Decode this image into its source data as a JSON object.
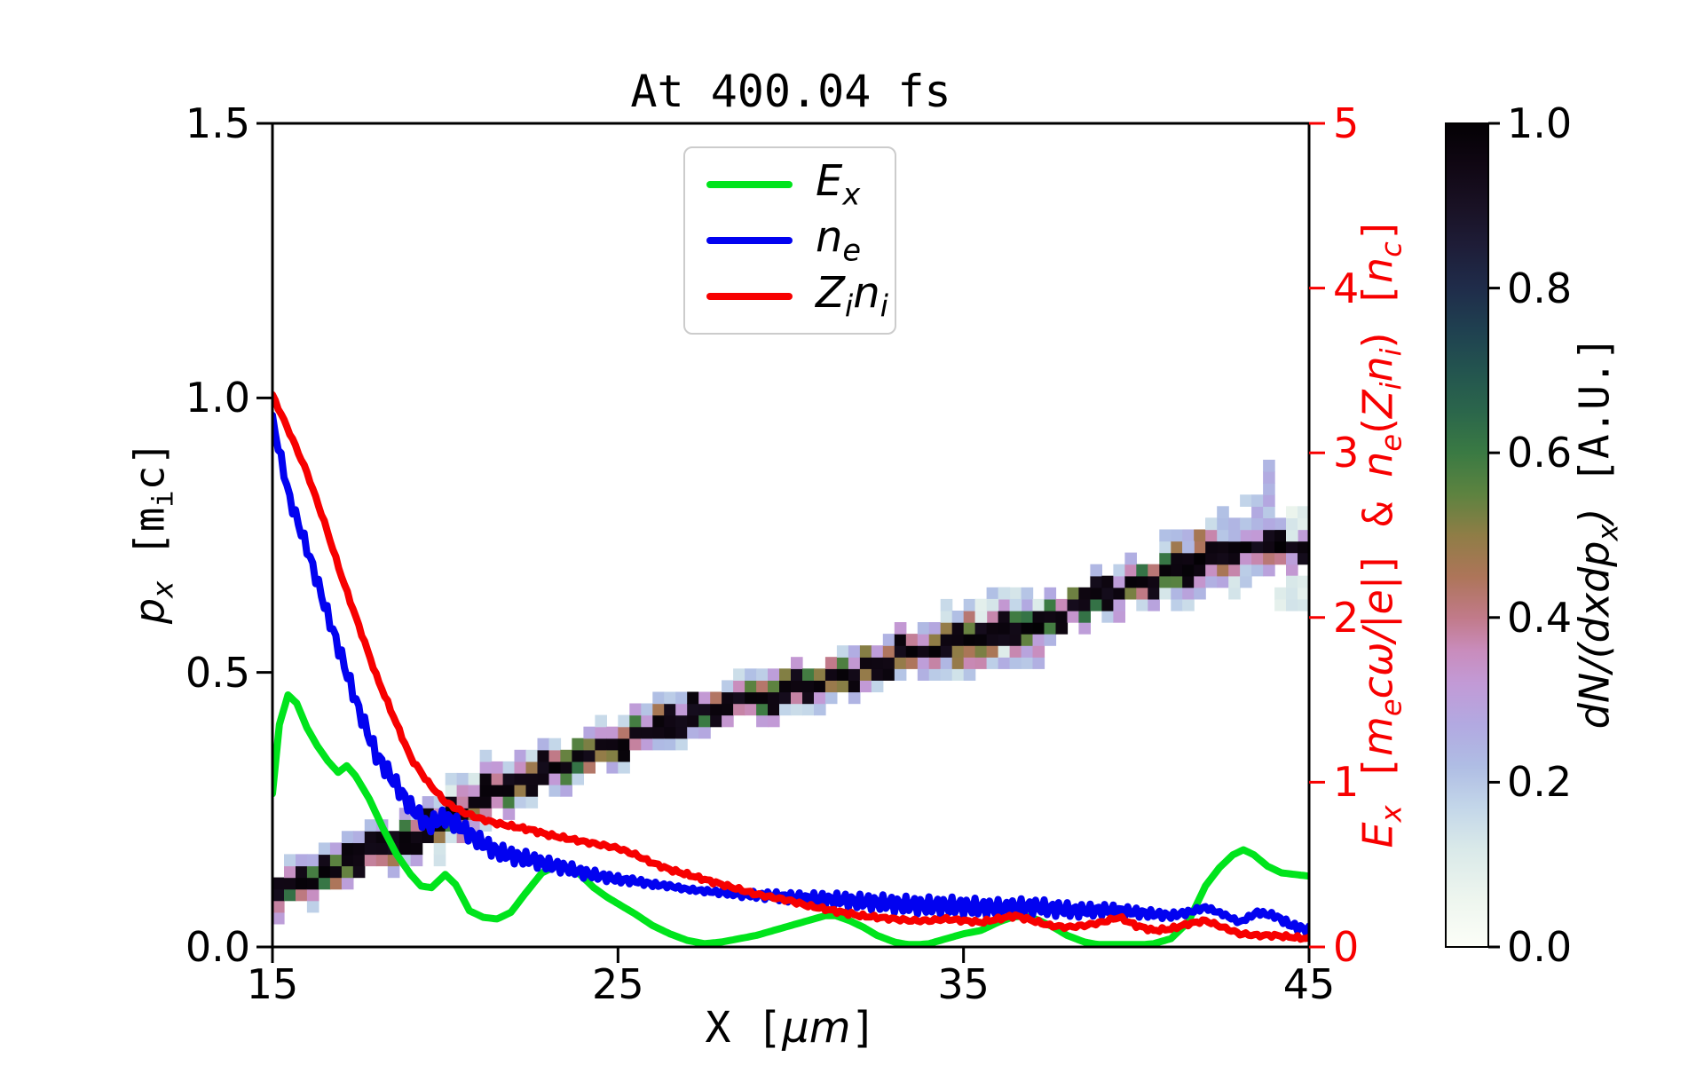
{
  "title": "At 400.04 fs",
  "axes": {
    "x": {
      "label_parts": [
        {
          "t": "X [",
          "mono": true
        },
        {
          "t": "μm",
          "it": true
        },
        {
          "t": "]",
          "mono": true
        }
      ],
      "ticks": [
        15,
        25,
        35,
        45
      ],
      "range": [
        15,
        45
      ]
    },
    "y_left": {
      "label_parts": [
        {
          "t": "p",
          "it": true
        },
        {
          "t": "x",
          "it": true,
          "sub": true
        },
        {
          "t": " [m",
          "mono": true
        },
        {
          "t": "i",
          "mono": true,
          "sub": true
        },
        {
          "t": "c]",
          "mono": true
        }
      ],
      "ticks": [
        "0.0",
        "0.5",
        "1.0",
        "1.5"
      ],
      "range": [
        0,
        1.5
      ],
      "color": "#000000"
    },
    "y_right": {
      "label_parts": [
        {
          "t": "E",
          "it": true
        },
        {
          "t": "x",
          "it": true,
          "sub": true
        },
        {
          "t": " [",
          "mono": true
        },
        {
          "t": "m",
          "it": true
        },
        {
          "t": "e",
          "it": true,
          "sub": true
        },
        {
          "t": "cω/|e|",
          "it": true
        },
        {
          "t": "] & ",
          "mono": true
        },
        {
          "t": "n",
          "it": true
        },
        {
          "t": "e",
          "it": true,
          "sub": true
        },
        {
          "t": "(",
          "mono": false
        },
        {
          "t": "Z",
          "it": true
        },
        {
          "t": "i",
          "it": true,
          "sub": true
        },
        {
          "t": "n",
          "it": true
        },
        {
          "t": "i",
          "it": true,
          "sub": true
        },
        {
          "t": ")",
          "mono": false
        },
        {
          "t": " [",
          "mono": true
        },
        {
          "t": "n",
          "it": true
        },
        {
          "t": "c",
          "it": true,
          "sub": true
        },
        {
          "t": "]",
          "mono": true
        }
      ],
      "ticks": [
        0,
        1,
        2,
        3,
        4,
        5
      ],
      "range": [
        0,
        5
      ],
      "color": "#f70000"
    }
  },
  "legend": {
    "items": [
      {
        "name": "Ex",
        "color": "#00e41c",
        "label_parts": [
          {
            "t": "E",
            "it": true
          },
          {
            "t": "x",
            "it": true,
            "sub": true
          }
        ]
      },
      {
        "name": "ne",
        "color": "#0202f0",
        "label_parts": [
          {
            "t": "n",
            "it": true
          },
          {
            "t": "e",
            "it": true,
            "sub": true
          }
        ]
      },
      {
        "name": "Zini",
        "color": "#f70000",
        "label_parts": [
          {
            "t": "Z",
            "it": true
          },
          {
            "t": "i",
            "it": true,
            "sub": true
          },
          {
            "t": "n",
            "it": true
          },
          {
            "t": "i",
            "it": true,
            "sub": true
          }
        ]
      }
    ]
  },
  "colorbar": {
    "label_parts": [
      {
        "t": "dN/(dxdp",
        "it": true
      },
      {
        "t": "x",
        "it": true,
        "sub": true
      },
      {
        "t": ")",
        "it": true
      },
      {
        "t": " [A.U.]",
        "mono": true
      }
    ],
    "ticks": [
      "0.0",
      "0.2",
      "0.4",
      "0.6",
      "0.8",
      "1.0"
    ],
    "range": [
      0,
      1
    ],
    "stops": [
      [
        0.0,
        "#fcfef8"
      ],
      [
        0.06,
        "#edf5ee"
      ],
      [
        0.12,
        "#d9e9e9"
      ],
      [
        0.17,
        "#c3d6e9"
      ],
      [
        0.22,
        "#afbde4"
      ],
      [
        0.27,
        "#b2a9e1"
      ],
      [
        0.32,
        "#c29ad6"
      ],
      [
        0.36,
        "#c98cbc"
      ],
      [
        0.4,
        "#c17a89"
      ],
      [
        0.45,
        "#ad7559"
      ],
      [
        0.5,
        "#8f7d46"
      ],
      [
        0.55,
        "#5d8340"
      ],
      [
        0.6,
        "#3a7a43"
      ],
      [
        0.65,
        "#2b664b"
      ],
      [
        0.7,
        "#23544f"
      ],
      [
        0.75,
        "#1f4050"
      ],
      [
        0.8,
        "#1f2c4a"
      ],
      [
        0.85,
        "#1e1d38"
      ],
      [
        0.9,
        "#191124"
      ],
      [
        0.95,
        "#100713"
      ],
      [
        1.0,
        "#030104"
      ]
    ]
  },
  "chart_data": {
    "type": [
      "heatmap",
      "line"
    ],
    "x_range": [
      15,
      45
    ],
    "y_left_range": [
      0,
      1.5
    ],
    "y_right_range": [
      0,
      5
    ],
    "series": [
      {
        "name": "Ex",
        "axis": "right",
        "color": "#00e41c",
        "noise_amp": 0,
        "x": [
          15,
          15.2,
          15.45,
          15.7,
          16,
          16.3,
          16.6,
          16.9,
          17.15,
          17.4,
          17.8,
          18.2,
          18.6,
          19,
          19.3,
          19.6,
          20,
          20.3,
          20.7,
          21.1,
          21.5,
          21.9,
          22.3,
          22.8,
          23.2,
          23.6,
          23.9,
          24.3,
          24.7,
          25.1,
          25.5,
          26,
          26.5,
          27,
          27.5,
          28,
          28.5,
          29,
          29.5,
          30,
          30.5,
          31,
          31.3,
          31.7,
          32.1,
          32.5,
          33,
          33.5,
          34,
          34.5,
          35,
          35.5,
          36,
          36.4,
          36.8,
          37.2,
          37.6,
          38,
          38.5,
          39,
          39.5,
          40,
          40.5,
          41,
          41.5,
          42,
          42.4,
          42.8,
          43.1,
          43.4,
          43.8,
          44.2,
          44.6,
          45
        ],
        "y": [
          0.93,
          1.35,
          1.53,
          1.48,
          1.33,
          1.22,
          1.13,
          1.06,
          1.1,
          1.04,
          0.9,
          0.72,
          0.56,
          0.44,
          0.37,
          0.36,
          0.44,
          0.38,
          0.22,
          0.18,
          0.17,
          0.21,
          0.32,
          0.45,
          0.49,
          0.47,
          0.44,
          0.36,
          0.3,
          0.25,
          0.2,
          0.13,
          0.08,
          0.04,
          0.02,
          0.03,
          0.05,
          0.07,
          0.1,
          0.13,
          0.16,
          0.19,
          0.19,
          0.16,
          0.12,
          0.07,
          0.03,
          0.01,
          0.02,
          0.05,
          0.08,
          0.1,
          0.15,
          0.18,
          0.19,
          0.16,
          0.12,
          0.07,
          0.03,
          0.01,
          0.01,
          0.01,
          0.02,
          0.05,
          0.15,
          0.37,
          0.48,
          0.56,
          0.59,
          0.56,
          0.49,
          0.45,
          0.44,
          0.43
        ]
      },
      {
        "name": "ne",
        "axis": "right",
        "color": "#0202f0",
        "noise_amp": 0.055,
        "x": [
          15,
          15.5,
          16,
          16.5,
          17,
          17.5,
          18,
          18.5,
          19,
          19.5,
          20,
          20.5,
          21,
          21.5,
          22,
          22.5,
          23,
          23.5,
          24,
          24.5,
          25,
          25.5,
          26,
          26.5,
          27,
          27.5,
          28,
          28.5,
          29,
          29.5,
          30,
          30.5,
          31,
          31.5,
          32,
          32.5,
          33,
          33.5,
          34,
          34.5,
          35,
          35.5,
          36,
          36.5,
          37,
          37.5,
          38,
          38.5,
          39,
          39.5,
          40,
          40.5,
          41,
          41.5,
          42,
          42.5,
          43,
          43.5,
          44,
          44.5,
          45
        ],
        "y": [
          3.2,
          2.72,
          2.42,
          2.08,
          1.76,
          1.44,
          1.17,
          1.01,
          0.85,
          0.74,
          0.79,
          0.72,
          0.64,
          0.58,
          0.55,
          0.53,
          0.5,
          0.48,
          0.45,
          0.43,
          0.41,
          0.4,
          0.38,
          0.37,
          0.35,
          0.34,
          0.33,
          0.32,
          0.315,
          0.31,
          0.3,
          0.295,
          0.29,
          0.285,
          0.275,
          0.27,
          0.26,
          0.255,
          0.25,
          0.25,
          0.245,
          0.24,
          0.235,
          0.24,
          0.245,
          0.235,
          0.225,
          0.22,
          0.225,
          0.22,
          0.21,
          0.2,
          0.19,
          0.21,
          0.24,
          0.2,
          0.15,
          0.21,
          0.19,
          0.13,
          0.1
        ]
      },
      {
        "name": "Zini",
        "axis": "right",
        "color": "#f70000",
        "noise_amp": 0.013,
        "x": [
          15,
          15.5,
          16,
          16.5,
          17,
          17.5,
          18,
          18.5,
          19,
          19.5,
          20,
          20.5,
          21,
          21.5,
          22,
          22.5,
          23,
          23.5,
          24,
          24.5,
          25,
          25.5,
          26,
          26.5,
          27,
          27.5,
          28,
          28.5,
          29,
          29.5,
          30,
          30.5,
          31,
          31.5,
          32,
          32.5,
          33,
          33.5,
          34,
          34.5,
          35,
          35.5,
          36,
          36.5,
          37,
          37.5,
          38,
          38.5,
          39,
          39.5,
          40,
          40.5,
          41,
          41.5,
          42,
          42.5,
          43,
          43.5,
          44,
          44.5,
          45
        ],
        "y": [
          3.35,
          3.12,
          2.88,
          2.58,
          2.25,
          1.95,
          1.65,
          1.4,
          1.15,
          1.0,
          0.88,
          0.82,
          0.78,
          0.75,
          0.73,
          0.71,
          0.68,
          0.66,
          0.64,
          0.62,
          0.6,
          0.56,
          0.51,
          0.47,
          0.44,
          0.41,
          0.38,
          0.35,
          0.32,
          0.3,
          0.28,
          0.25,
          0.23,
          0.21,
          0.19,
          0.18,
          0.17,
          0.16,
          0.16,
          0.17,
          0.16,
          0.15,
          0.17,
          0.19,
          0.16,
          0.13,
          0.12,
          0.13,
          0.15,
          0.18,
          0.13,
          0.1,
          0.11,
          0.14,
          0.16,
          0.12,
          0.08,
          0.07,
          0.07,
          0.06,
          0.05
        ]
      }
    ],
    "heatmap": {
      "units": "band: [X in um, p_x in m_i c]; value scale matches colorbar 0-1",
      "grid": {
        "cols": 90,
        "rows": 71
      },
      "band": [
        [
          15,
          0.1
        ],
        [
          16,
          0.115
        ],
        [
          17,
          0.145
        ],
        [
          18,
          0.175
        ],
        [
          19,
          0.205
        ],
        [
          20,
          0.235
        ],
        [
          21,
          0.27
        ],
        [
          22,
          0.3
        ],
        [
          23,
          0.325
        ],
        [
          24,
          0.35
        ],
        [
          25,
          0.375
        ],
        [
          26,
          0.4
        ],
        [
          27,
          0.42
        ],
        [
          28,
          0.44
        ],
        [
          29,
          0.455
        ],
        [
          30,
          0.468
        ],
        [
          31,
          0.485
        ],
        [
          32,
          0.505
        ],
        [
          33,
          0.525
        ],
        [
          34,
          0.545
        ],
        [
          35,
          0.555
        ],
        [
          36,
          0.575
        ],
        [
          37,
          0.582
        ],
        [
          38,
          0.615
        ],
        [
          39,
          0.64
        ],
        [
          40,
          0.66
        ],
        [
          41,
          0.685
        ],
        [
          42,
          0.705
        ],
        [
          43,
          0.718
        ],
        [
          44,
          0.728
        ],
        [
          45,
          0.735
        ]
      ],
      "core_value": 1.0,
      "blooms": [
        {
          "from": 15.0,
          "to": 17.6,
          "spread": 2
        },
        {
          "from": 19.8,
          "to": 21.4,
          "spread": 3
        },
        {
          "from": 27.6,
          "to": 29.3,
          "spread": 2
        },
        {
          "from": 34.2,
          "to": 37.3,
          "spread": 3
        },
        {
          "from": 40.6,
          "to": 43.8,
          "spread": 3
        }
      ],
      "plumes": [
        {
          "from": 41.2,
          "to": 43.9,
          "rise": 0.12,
          "value": 0.2
        },
        {
          "from": 34.6,
          "to": 36.6,
          "rise": 0.05,
          "value": 0.12
        }
      ],
      "patches": [
        {
          "x1": 44.1,
          "x2": 45.0,
          "p1": 0.63,
          "p2": 0.675,
          "value": 0.15
        },
        {
          "x1": 44.4,
          "x2": 45.0,
          "p1": 0.755,
          "p2": 0.79,
          "value": 0.1
        }
      ]
    }
  },
  "style": {
    "spine_color": "#000000",
    "right_tick_color": "#f70000",
    "background": "#ffffff"
  }
}
